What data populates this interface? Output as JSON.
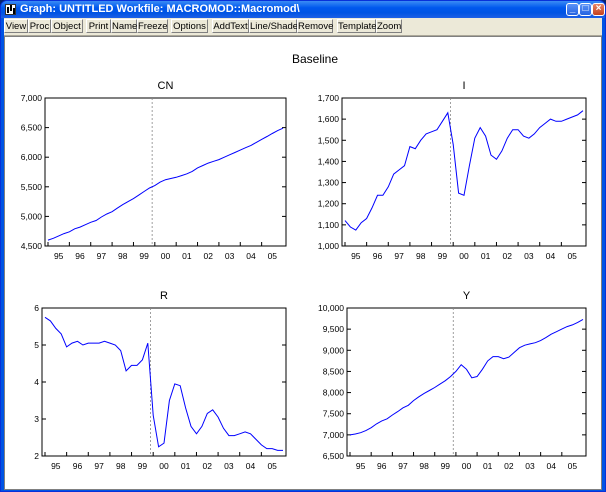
{
  "window": {
    "title": "Graph: UNTITLED   Workfile: MACROMOD::Macromod\\",
    "min_label": "_",
    "max_label": "□",
    "close_label": "×",
    "colors": {
      "titlebar": "#0054e3",
      "frame": "#ece9d8",
      "series": "#0000ff"
    }
  },
  "toolbar": {
    "buttons": [
      "View",
      "Proc",
      "Object",
      "Print",
      "Name",
      "Freeze",
      "Options",
      "AddText",
      "Line/Shade",
      "Remove",
      "Template",
      "Zoom"
    ]
  },
  "graph": {
    "title": "Baseline",
    "marker_line": "dashed vertical line between 99 and 00",
    "colors": {
      "line": "#0000ff",
      "marker": "#888888",
      "axes": "#000000"
    }
  },
  "chart_data": [
    {
      "type": "line",
      "title": "CN",
      "x_ticks": [
        "95",
        "96",
        "97",
        "98",
        "99",
        "00",
        "01",
        "02",
        "03",
        "04",
        "05"
      ],
      "y_ticks": [
        "4,500",
        "5,000",
        "5,500",
        "6,000",
        "6,500",
        "7,000"
      ],
      "ylim": [
        4500,
        7000
      ],
      "values": [
        4600,
        4630,
        4670,
        4710,
        4740,
        4790,
        4820,
        4860,
        4900,
        4930,
        4990,
        5040,
        5080,
        5140,
        5200,
        5250,
        5300,
        5360,
        5420,
        5480,
        5520,
        5580,
        5620,
        5640,
        5660,
        5690,
        5720,
        5760,
        5820,
        5860,
        5900,
        5930,
        5960,
        6000,
        6040,
        6080,
        6120,
        6160,
        6200,
        6250,
        6300,
        6350,
        6400,
        6450,
        6490
      ]
    },
    {
      "type": "line",
      "title": "I",
      "x_ticks": [
        "95",
        "96",
        "97",
        "98",
        "99",
        "00",
        "01",
        "02",
        "03",
        "04",
        "05"
      ],
      "y_ticks": [
        "1,000",
        "1,100",
        "1,200",
        "1,300",
        "1,400",
        "1,500",
        "1,600",
        "1,700"
      ],
      "ylim": [
        1000,
        1700
      ],
      "values": [
        1120,
        1090,
        1075,
        1110,
        1130,
        1180,
        1240,
        1240,
        1280,
        1340,
        1360,
        1380,
        1470,
        1460,
        1500,
        1530,
        1540,
        1550,
        1590,
        1630,
        1480,
        1250,
        1240,
        1380,
        1510,
        1560,
        1520,
        1430,
        1410,
        1450,
        1510,
        1550,
        1550,
        1520,
        1510,
        1530,
        1560,
        1580,
        1600,
        1590,
        1590,
        1600,
        1610,
        1620,
        1640
      ]
    },
    {
      "type": "line",
      "title": "R",
      "x_ticks": [
        "95",
        "96",
        "97",
        "98",
        "99",
        "00",
        "01",
        "02",
        "03",
        "04",
        "05"
      ],
      "y_ticks": [
        "2",
        "3",
        "4",
        "5",
        "6"
      ],
      "ylim": [
        2,
        6
      ],
      "values": [
        5.75,
        5.65,
        5.45,
        5.3,
        4.95,
        5.05,
        5.1,
        5.0,
        5.05,
        5.05,
        5.05,
        5.1,
        5.05,
        5.0,
        4.85,
        4.3,
        4.45,
        4.45,
        4.6,
        5.05,
        3.1,
        2.25,
        2.35,
        3.5,
        3.95,
        3.9,
        3.3,
        2.8,
        2.6,
        2.8,
        3.15,
        3.25,
        3.05,
        2.75,
        2.55,
        2.55,
        2.6,
        2.65,
        2.6,
        2.45,
        2.3,
        2.2,
        2.2,
        2.15,
        2.15
      ]
    },
    {
      "type": "line",
      "title": "Y",
      "x_ticks": [
        "95",
        "96",
        "97",
        "98",
        "99",
        "00",
        "01",
        "02",
        "03",
        "04",
        "05"
      ],
      "y_ticks": [
        "6,500",
        "7,000",
        "7,500",
        "8,000",
        "8,500",
        "9,000",
        "9,500",
        "10,000"
      ],
      "ylim": [
        6500,
        10000
      ],
      "values": [
        7000,
        7020,
        7050,
        7100,
        7170,
        7260,
        7330,
        7380,
        7470,
        7550,
        7640,
        7700,
        7810,
        7900,
        7980,
        8050,
        8120,
        8200,
        8280,
        8380,
        8500,
        8660,
        8550,
        8350,
        8380,
        8550,
        8750,
        8850,
        8850,
        8800,
        8840,
        8950,
        9060,
        9120,
        9150,
        9180,
        9230,
        9300,
        9380,
        9440,
        9500,
        9560,
        9600,
        9660,
        9730
      ]
    }
  ]
}
